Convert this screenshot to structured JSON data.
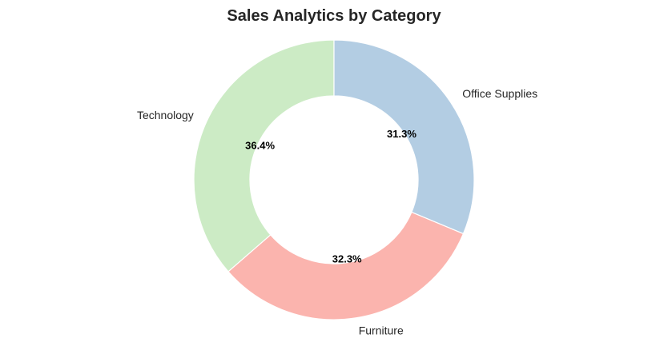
{
  "chart_data": {
    "type": "pie",
    "variant": "donut",
    "title": "Sales Analytics by Category",
    "categories": [
      "Technology",
      "Furniture",
      "Office Supplies"
    ],
    "values": [
      36.4,
      32.3,
      31.3
    ],
    "value_labels": [
      "36.4%",
      "32.3%",
      "31.3%"
    ],
    "colors": [
      "#ccebc5",
      "#fbb4ae",
      "#b3cde3"
    ],
    "start_angle_deg": 90,
    "direction": "counterclockwise",
    "inner_radius_ratio": 0.6,
    "wedge_edge_color": "#ffffff",
    "legend": "none"
  }
}
